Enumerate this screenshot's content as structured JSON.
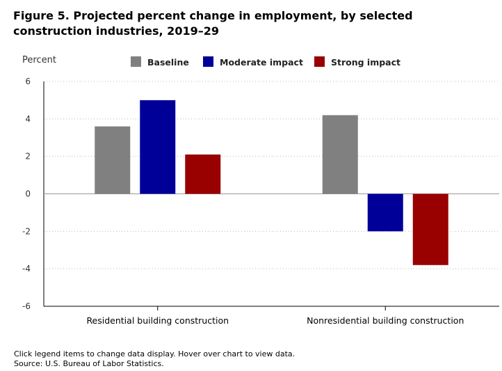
{
  "page": {
    "title": "Figure 5. Projected percent change in employment, by selected construction industries, 2019–29",
    "footnote": "Click legend items to change data display. Hover over chart to view data.",
    "source": "Source: U.S. Bureau of Labor Statistics."
  },
  "chart_data": {
    "type": "bar",
    "title": "Figure 5. Projected percent change in employment, by selected construction industries, 2019–29",
    "ylabel": "Percent",
    "xlabel": "",
    "categories": [
      "Residential building construction",
      "Nonresidential building construction"
    ],
    "ylim": [
      -6,
      6
    ],
    "yticks": [
      6,
      4,
      2,
      0,
      -2,
      -4,
      -6
    ],
    "grid": true,
    "legend_position": "top",
    "series": [
      {
        "name": "Baseline",
        "color": "#808080",
        "values": [
          3.6,
          4.2
        ]
      },
      {
        "name": "Moderate impact",
        "color": "#000099",
        "values": [
          5.0,
          -2.0
        ]
      },
      {
        "name": "Strong impact",
        "color": "#990000",
        "values": [
          2.1,
          -3.8
        ]
      }
    ]
  }
}
